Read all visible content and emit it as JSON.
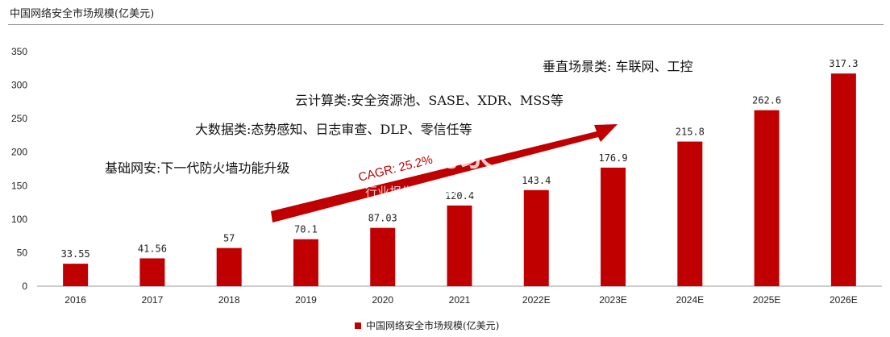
{
  "header": {
    "title": "中国网络安全市场规模(亿美元)"
  },
  "colors": {
    "bar": "#c00000",
    "arrow": "#c00000",
    "axis": "#999999"
  },
  "chart_data": {
    "type": "bar",
    "categories": [
      "2016",
      "2017",
      "2018",
      "2019",
      "2020",
      "2021",
      "2022E",
      "2023E",
      "2024E",
      "2025E",
      "2026E"
    ],
    "value_labels": [
      "33.55",
      "41.56",
      "57",
      "70.1",
      "87.03",
      "120.4",
      "143.4",
      "176.9",
      "215.8",
      "262.6",
      "317.3"
    ],
    "series": [
      {
        "name": "中国网络安全市场规模(亿美元)",
        "values": [
          33.55,
          41.56,
          57,
          70.1,
          87.03,
          120.4,
          143.4,
          176.9,
          215.8,
          262.6,
          317.3
        ]
      }
    ],
    "ylim": [
      0,
      350
    ],
    "yticks": [
      "0",
      "50",
      "100",
      "150",
      "200",
      "250",
      "300",
      "350"
    ],
    "grid": false,
    "legend_position": "bottom",
    "annotations": [
      "垂直场景类: 车联网、工控",
      "云计算类:安全资源池、SASE、XDR、MSS等",
      "大数据类:态势感知、日志审查、DLP、零信任等",
      "基础网安:下一代防火墙功能升级"
    ],
    "cagr_label": "CAGR: 25.2%"
  },
  "watermark": {
    "main": "贝壳购家",
    "sub": "行业报告 | CHNIPO.CN"
  },
  "legend": {
    "label": "中国网络安全市场规模(亿美元)"
  }
}
